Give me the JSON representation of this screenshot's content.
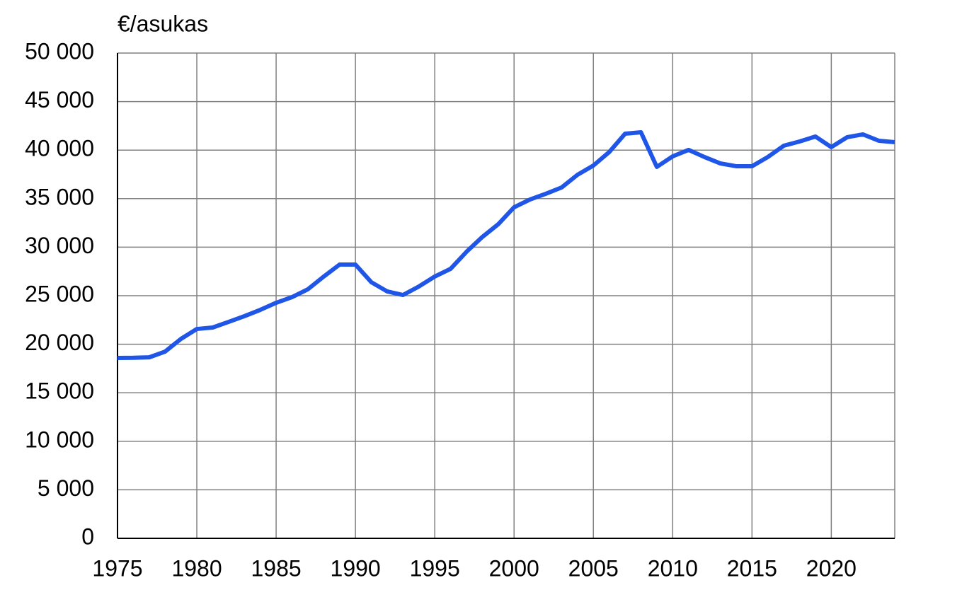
{
  "chart_data": {
    "type": "line",
    "y_label": "€/asukas",
    "x": [
      1975,
      1976,
      1977,
      1978,
      1979,
      1980,
      1981,
      1982,
      1983,
      1984,
      1985,
      1986,
      1987,
      1988,
      1989,
      1990,
      1991,
      1992,
      1993,
      1994,
      1995,
      1996,
      1997,
      1998,
      1999,
      2000,
      2001,
      2002,
      2003,
      2004,
      2005,
      2006,
      2007,
      2008,
      2009,
      2010,
      2011,
      2012,
      2013,
      2014,
      2015,
      2016,
      2017,
      2018,
      2019,
      2020,
      2021,
      2022,
      2023,
      2024
    ],
    "series": [
      {
        "color": "#1f56e8",
        "values": [
          18590,
          18600,
          18650,
          19240,
          20550,
          21570,
          21720,
          22300,
          22890,
          23540,
          24270,
          24850,
          25660,
          26970,
          28210,
          28210,
          26390,
          25440,
          25070,
          25950,
          26970,
          27770,
          29520,
          31050,
          32360,
          34110,
          34910,
          35500,
          36150,
          37460,
          38410,
          39800,
          41690,
          41840,
          38270,
          39360,
          40020,
          39290,
          38630,
          38340,
          38340,
          39290,
          40450,
          40890,
          41400,
          40310,
          41330,
          41620,
          40960,
          40820
        ]
      }
    ],
    "xlim": [
      1975,
      2024
    ],
    "xticks": [
      1975,
      1980,
      1985,
      1990,
      1995,
      2000,
      2005,
      2010,
      2015,
      2020
    ],
    "ylim": [
      0,
      50000
    ],
    "yticks": [
      0,
      {
        "value": 5000,
        "label": "5 000"
      },
      {
        "value": 10000,
        "label": "10 000"
      },
      {
        "value": 15000,
        "label": "15 000"
      },
      {
        "value": 20000,
        "label": "20 000"
      },
      {
        "value": 25000,
        "label": "25 000"
      },
      {
        "value": 30000,
        "label": "30 000"
      },
      {
        "value": 35000,
        "label": "35 000"
      },
      {
        "value": 40000,
        "label": "40 000"
      },
      {
        "value": 45000,
        "label": "45 000"
      },
      {
        "value": 50000,
        "label": "50 000"
      }
    ],
    "grid": true
  }
}
